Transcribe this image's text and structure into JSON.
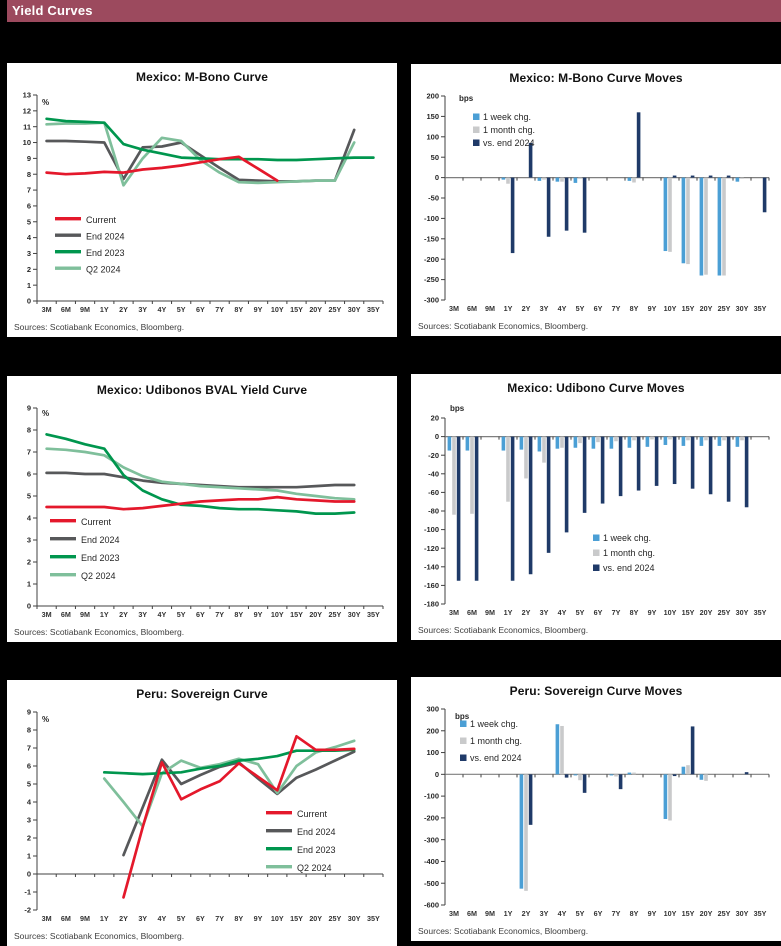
{
  "header": {
    "title": "Yield Curves"
  },
  "chart_data": [
    {
      "type": "line",
      "title": "Mexico: M-Bono Curve",
      "unit": "%",
      "ylim": [
        0,
        13
      ],
      "ytick_step": 1,
      "legend_position": "lower-left",
      "categories": [
        "3M",
        "6M",
        "9M",
        "1Y",
        "2Y",
        "3Y",
        "4Y",
        "5Y",
        "6Y",
        "7Y",
        "8Y",
        "9Y",
        "10Y",
        "15Y",
        "20Y",
        "25Y",
        "30Y",
        "35Y"
      ],
      "series": [
        {
          "name": "Current",
          "color": "#e4182b",
          "values": [
            8.1,
            8.0,
            8.05,
            8.15,
            8.1,
            8.3,
            8.4,
            8.55,
            8.75,
            8.95,
            9.1,
            8.35,
            7.6,
            null,
            null,
            null,
            null,
            null
          ]
        },
        {
          "name": "End 2024",
          "color": "#57585a",
          "values": [
            10.1,
            10.1,
            10.05,
            10.0,
            7.7,
            9.7,
            9.75,
            10.0,
            9.2,
            8.4,
            7.65,
            7.6,
            7.55,
            7.55,
            7.6,
            7.6,
            10.8,
            null
          ]
        },
        {
          "name": "End 2023",
          "color": "#00964e",
          "values": [
            11.5,
            11.35,
            11.3,
            11.25,
            9.9,
            9.55,
            9.3,
            9.05,
            9.0,
            8.95,
            8.95,
            8.95,
            8.9,
            8.9,
            8.95,
            9.0,
            9.05,
            9.05
          ]
        },
        {
          "name": "Q2 2024",
          "color": "#7fbf9b",
          "values": [
            11.15,
            11.2,
            11.2,
            11.25,
            7.3,
            9.0,
            10.3,
            10.1,
            8.9,
            8.1,
            7.5,
            7.45,
            7.5,
            7.55,
            7.6,
            7.6,
            10.0,
            null
          ]
        }
      ],
      "sources": "Sources: Scotiabank  Economics,  Bloomberg."
    },
    {
      "type": "bar",
      "title": "Mexico: M-Bono Curve Moves",
      "unit": "bps",
      "ylim": [
        -300,
        200
      ],
      "ytick_step": 50,
      "legend_position": "upper-left",
      "categories": [
        "3M",
        "6M",
        "9M",
        "1Y",
        "2Y",
        "3Y",
        "4Y",
        "5Y",
        "6Y",
        "7Y",
        "8Y",
        "9Y",
        "10Y",
        "15Y",
        "20Y",
        "25Y",
        "30Y",
        "35Y"
      ],
      "series": [
        {
          "name": "1 week chg.",
          "color": "#4b9fd5",
          "values": [
            0,
            0,
            0,
            -5,
            0,
            -8,
            -10,
            -13,
            0,
            0,
            -8,
            0,
            -180,
            -210,
            -240,
            -240,
            -10,
            0
          ]
        },
        {
          "name": "1 month chg.",
          "color": "#c9cacb",
          "values": [
            0,
            0,
            0,
            -15,
            0,
            -5,
            -10,
            -3,
            0,
            0,
            -12,
            0,
            -182,
            -212,
            -238,
            -240,
            -3,
            0
          ]
        },
        {
          "name": "vs. end 2024",
          "color": "#1f3a68",
          "values": [
            0,
            0,
            0,
            -185,
            85,
            -145,
            -130,
            -135,
            0,
            0,
            160,
            0,
            5,
            5,
            5,
            5,
            0,
            -85
          ]
        }
      ],
      "sources": "Sources: Scotiabank  Economics,  Bloomberg."
    },
    {
      "type": "line",
      "title": "Mexico: Udibonos BVAL Yield Curve",
      "unit": "%",
      "ylim": [
        0,
        9
      ],
      "ytick_step": 1,
      "legend_position": "lower-left",
      "categories": [
        "3M",
        "6M",
        "9M",
        "1Y",
        "2Y",
        "3Y",
        "4Y",
        "5Y",
        "6Y",
        "7Y",
        "8Y",
        "9Y",
        "10Y",
        "15Y",
        "20Y",
        "25Y",
        "30Y",
        "35Y"
      ],
      "series": [
        {
          "name": "Current",
          "color": "#e4182b",
          "values": [
            4.5,
            4.5,
            4.5,
            4.5,
            4.4,
            4.45,
            4.55,
            4.65,
            4.75,
            4.8,
            4.85,
            4.85,
            4.95,
            4.85,
            4.8,
            4.75,
            4.75,
            null
          ]
        },
        {
          "name": "End 2024",
          "color": "#57585a",
          "values": [
            6.05,
            6.05,
            6.0,
            6.0,
            5.85,
            5.7,
            5.6,
            5.55,
            5.5,
            5.45,
            5.4,
            5.4,
            5.4,
            5.4,
            5.45,
            5.5,
            5.5,
            null
          ]
        },
        {
          "name": "End 2023",
          "color": "#00964e",
          "values": [
            7.8,
            7.6,
            7.35,
            7.15,
            5.95,
            5.25,
            4.85,
            4.6,
            4.55,
            4.45,
            4.4,
            4.4,
            4.35,
            4.3,
            4.2,
            4.2,
            4.25,
            null
          ]
        },
        {
          "name": "Q2 2024",
          "color": "#7fbf9b",
          "values": [
            7.15,
            7.1,
            7.0,
            6.85,
            6.3,
            5.9,
            5.65,
            5.55,
            5.45,
            5.4,
            5.35,
            5.3,
            5.25,
            5.1,
            5.0,
            4.9,
            4.85,
            null
          ]
        }
      ],
      "sources": "Sources: Scotiabank  Economics,  Bloomberg."
    },
    {
      "type": "bar",
      "title": "Mexico: Udibono Curve Moves",
      "unit": "bps",
      "ylim": [
        -180,
        20
      ],
      "ytick_step": 20,
      "legend_position": "middle-right",
      "categories": [
        "3M",
        "6M",
        "9M",
        "1Y",
        "2Y",
        "3Y",
        "4Y",
        "5Y",
        "6Y",
        "7Y",
        "8Y",
        "9Y",
        "10Y",
        "15Y",
        "20Y",
        "25Y",
        "30Y",
        "35Y"
      ],
      "series": [
        {
          "name": "1 week chg.",
          "color": "#4b9fd5",
          "values": [
            -15,
            -15,
            0,
            -15,
            -14,
            -16,
            -13,
            -12,
            -13,
            -13,
            -12,
            -11,
            -9,
            -10,
            -10,
            -10,
            -11,
            0
          ]
        },
        {
          "name": "1 month chg.",
          "color": "#c9cacb",
          "values": [
            -84,
            -83,
            0,
            -70,
            -45,
            -28,
            -12,
            -7,
            -6,
            -5,
            -4,
            -3,
            -3,
            -4,
            -4,
            -4,
            -4,
            0
          ]
        },
        {
          "name": "vs. end 2024",
          "color": "#1f3a68",
          "values": [
            -155,
            -155,
            0,
            -155,
            -148,
            -125,
            -103,
            -82,
            -72,
            -64,
            -58,
            -53,
            -51,
            -56,
            -62,
            -70,
            -76,
            0
          ]
        }
      ],
      "sources": "Sources: Scotiabank  Economics,  Bloomberg."
    },
    {
      "type": "line",
      "title": "Peru: Sovereign Curve",
      "unit": "%",
      "ylim": [
        -2,
        9
      ],
      "ytick_step": 1,
      "legend_position": "middle-right",
      "categories": [
        "3M",
        "6M",
        "9M",
        "1Y",
        "2Y",
        "3Y",
        "4Y",
        "5Y",
        "6Y",
        "7Y",
        "8Y",
        "9Y",
        "10Y",
        "15Y",
        "20Y",
        "25Y",
        "30Y",
        "35Y"
      ],
      "series": [
        {
          "name": "Current",
          "color": "#e4182b",
          "values": [
            null,
            null,
            null,
            null,
            -1.3,
            2.6,
            6.2,
            4.15,
            4.7,
            5.15,
            6.15,
            5.4,
            4.65,
            7.65,
            6.9,
            6.9,
            6.95,
            null
          ]
        },
        {
          "name": "End 2024",
          "color": "#57585a",
          "values": [
            null,
            null,
            null,
            null,
            1.05,
            3.7,
            6.35,
            5.0,
            5.5,
            5.95,
            6.2,
            5.3,
            4.45,
            5.35,
            5.8,
            6.3,
            6.8,
            null
          ]
        },
        {
          "name": "End 2023",
          "color": "#00964e",
          "values": [
            null,
            null,
            null,
            5.65,
            5.6,
            5.55,
            5.6,
            5.65,
            5.85,
            6.0,
            6.3,
            6.4,
            6.55,
            6.85,
            6.85,
            6.85,
            6.9,
            null
          ]
        },
        {
          "name": "Q2 2024",
          "color": "#7fbf9b",
          "values": [
            null,
            null,
            null,
            5.3,
            4.0,
            2.65,
            5.6,
            6.3,
            5.9,
            6.1,
            6.4,
            6.1,
            4.5,
            6.0,
            6.75,
            7.05,
            7.4,
            null
          ]
        }
      ],
      "sources": "Sources: Scotiabank  Economics,  Bloomberg."
    },
    {
      "type": "bar",
      "title": "Peru: Sovereign Curve Moves",
      "unit": "bps",
      "ylim": [
        -600,
        300
      ],
      "ytick_step": 100,
      "legend_position": "upper-left",
      "categories": [
        "3M",
        "6M",
        "9M",
        "1Y",
        "2Y",
        "3Y",
        "4Y",
        "5Y",
        "6Y",
        "7Y",
        "8Y",
        "9Y",
        "10Y",
        "15Y",
        "20Y",
        "25Y",
        "30Y",
        "35Y"
      ],
      "series": [
        {
          "name": "1 week chg.",
          "color": "#4b9fd5",
          "values": [
            0,
            0,
            0,
            0,
            -525,
            0,
            230,
            -5,
            0,
            -5,
            8,
            0,
            -205,
            35,
            -25,
            0,
            0,
            0
          ]
        },
        {
          "name": "1 month chg.",
          "color": "#c9cacb",
          "values": [
            0,
            0,
            0,
            0,
            -535,
            0,
            222,
            -27,
            0,
            -10,
            8,
            0,
            -212,
            42,
            -30,
            0,
            0,
            0
          ]
        },
        {
          "name": "vs. end 2024",
          "color": "#1f3a68",
          "values": [
            0,
            0,
            0,
            0,
            -232,
            0,
            -15,
            -85,
            0,
            -68,
            0,
            0,
            -8,
            220,
            0,
            0,
            10,
            0
          ]
        }
      ],
      "sources": "Sources: Scotiabank  Economics,  Bloomberg."
    }
  ]
}
